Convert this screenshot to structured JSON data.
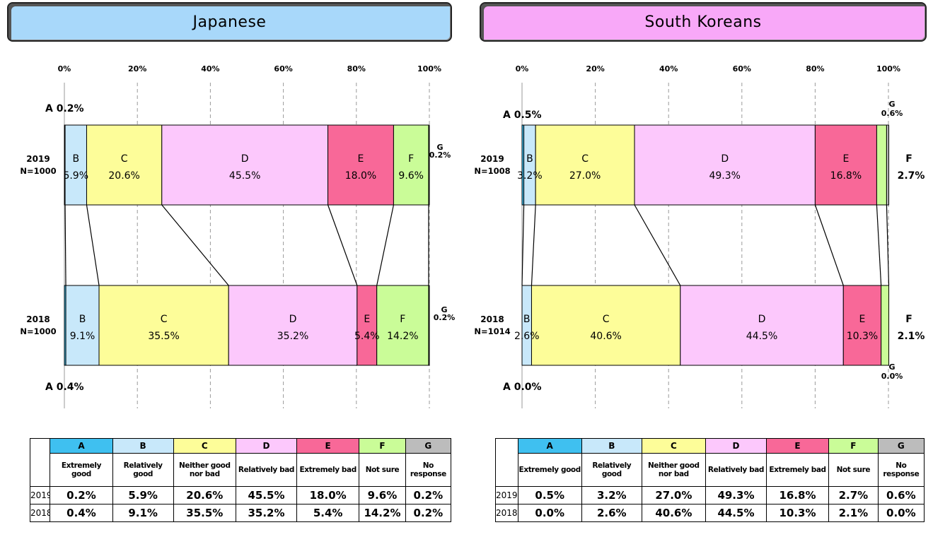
{
  "categories": [
    "A",
    "B",
    "C",
    "D",
    "E",
    "F",
    "G"
  ],
  "category_descriptions": [
    "Extremely good",
    "Relatively good",
    "Neither good nor bad",
    "Relatively bad",
    "Extremely bad",
    "Not sure",
    "No response"
  ],
  "category_colors": [
    "#3fc0f0",
    "#c8e8fa",
    "#fdfd99",
    "#fcc8fc",
    "#f86898",
    "#cafc98",
    "#bcbcbc"
  ],
  "axis_ticks": [
    "0%",
    "20%",
    "40%",
    "60%",
    "80%",
    "100%"
  ],
  "chart_data": [
    {
      "type": "bar",
      "title": "Japanese",
      "title_color": "#a8d8fa",
      "rows": [
        {
          "year": "2019",
          "n": "N=1000",
          "values": [
            0.2,
            5.9,
            20.6,
            45.5,
            18.0,
            9.6,
            0.2
          ]
        },
        {
          "year": "2018",
          "n": "N=1000",
          "values": [
            0.4,
            9.1,
            35.5,
            35.2,
            5.4,
            14.2,
            0.2
          ]
        }
      ],
      "xlim": [
        0,
        100
      ]
    },
    {
      "type": "bar",
      "title": "South Koreans",
      "title_color": "#f8a8f8",
      "rows": [
        {
          "year": "2019",
          "n": "N=1008",
          "values": [
            0.5,
            3.2,
            27.0,
            49.3,
            16.8,
            2.7,
            0.6
          ]
        },
        {
          "year": "2018",
          "n": "N=1014",
          "values": [
            0.0,
            2.6,
            40.6,
            44.5,
            10.3,
            2.1,
            0.0
          ]
        }
      ],
      "xlim": [
        0,
        100
      ]
    }
  ],
  "tables": [
    {
      "rows": [
        {
          "year": "2019",
          "cells": [
            "0.2%",
            "5.9%",
            "20.6%",
            "45.5%",
            "18.0%",
            "9.6%",
            "0.2%"
          ]
        },
        {
          "year": "2018",
          "cells": [
            "0.4%",
            "9.1%",
            "35.5%",
            "35.2%",
            "5.4%",
            "14.2%",
            "0.2%"
          ]
        }
      ]
    },
    {
      "rows": [
        {
          "year": "2019",
          "cells": [
            "0.5%",
            "3.2%",
            "27.0%",
            "49.3%",
            "16.8%",
            "2.7%",
            "0.6%"
          ]
        },
        {
          "year": "2018",
          "cells": [
            "0.0%",
            "2.6%",
            "40.6%",
            "44.5%",
            "10.3%",
            "2.1%",
            "0.0%"
          ]
        }
      ]
    }
  ]
}
